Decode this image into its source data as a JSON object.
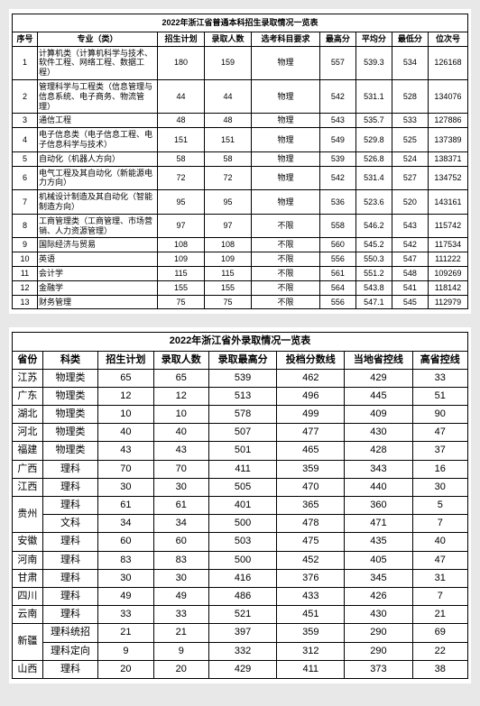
{
  "table1": {
    "title": "2022年浙江省普通本科招生录取情况一览表",
    "headers": [
      "序号",
      "专业（类）",
      "招生计划",
      "录取人数",
      "选考科目要求",
      "最高分",
      "平均分",
      "最低分",
      "位次号"
    ],
    "rows": [
      [
        "1",
        "计算机类（计算机科学与技术、软件工程、网络工程、数据工程）",
        "180",
        "159",
        "物理",
        "557",
        "539.3",
        "534",
        "126168"
      ],
      [
        "2",
        "管理科学与工程类（信息管理与信息系统、电子商务、物流管理）",
        "44",
        "44",
        "物理",
        "542",
        "531.1",
        "528",
        "134076"
      ],
      [
        "3",
        "通信工程",
        "48",
        "48",
        "物理",
        "543",
        "535.7",
        "533",
        "127886"
      ],
      [
        "4",
        "电子信息类（电子信息工程、电子信息科学与技术）",
        "151",
        "151",
        "物理",
        "549",
        "529.8",
        "525",
        "137389"
      ],
      [
        "5",
        "自动化（机器人方向）",
        "58",
        "58",
        "物理",
        "539",
        "526.8",
        "524",
        "138371"
      ],
      [
        "6",
        "电气工程及其自动化（新能源电力方向）",
        "72",
        "72",
        "物理",
        "542",
        "531.4",
        "527",
        "134752"
      ],
      [
        "7",
        "机械设计制造及其自动化（智能制造方向）",
        "95",
        "95",
        "物理",
        "536",
        "523.6",
        "520",
        "143161"
      ],
      [
        "8",
        "工商管理类（工商管理、市场营销、人力资源管理）",
        "97",
        "97",
        "不限",
        "558",
        "546.2",
        "543",
        "115742"
      ],
      [
        "9",
        "国际经济与贸易",
        "108",
        "108",
        "不限",
        "560",
        "545.2",
        "542",
        "117534"
      ],
      [
        "10",
        "英语",
        "109",
        "109",
        "不限",
        "556",
        "550.3",
        "547",
        "111222"
      ],
      [
        "11",
        "会计学",
        "115",
        "115",
        "不限",
        "561",
        "551.2",
        "548",
        "109269"
      ],
      [
        "12",
        "金融学",
        "155",
        "155",
        "不限",
        "564",
        "543.8",
        "541",
        "118142"
      ],
      [
        "13",
        "财务管理",
        "75",
        "75",
        "不限",
        "556",
        "547.1",
        "545",
        "112979"
      ]
    ]
  },
  "table2": {
    "title": "2022年浙江省外录取情况一览表",
    "headers": [
      "省份",
      "科类",
      "招生计划",
      "录取人数",
      "录取最高分",
      "投档分数线",
      "当地省控线",
      "高省控线"
    ],
    "rows": [
      [
        "江苏",
        "物理类",
        "65",
        "65",
        "539",
        "462",
        "429",
        "33"
      ],
      [
        "广东",
        "物理类",
        "12",
        "12",
        "513",
        "496",
        "445",
        "51"
      ],
      [
        "湖北",
        "物理类",
        "10",
        "10",
        "578",
        "499",
        "409",
        "90"
      ],
      [
        "河北",
        "物理类",
        "40",
        "40",
        "507",
        "477",
        "430",
        "47"
      ],
      [
        "福建",
        "物理类",
        "43",
        "43",
        "501",
        "465",
        "428",
        "37"
      ],
      [
        "广西",
        "理科",
        "70",
        "70",
        "411",
        "359",
        "343",
        "16"
      ],
      [
        "江西",
        "理科",
        "30",
        "30",
        "505",
        "470",
        "440",
        "30"
      ],
      [
        "",
        "理科",
        "61",
        "61",
        "401",
        "365",
        "360",
        "5"
      ],
      [
        "",
        "文科",
        "34",
        "34",
        "500",
        "478",
        "471",
        "7"
      ],
      [
        "安徽",
        "理科",
        "60",
        "60",
        "503",
        "475",
        "435",
        "40"
      ],
      [
        "河南",
        "理科",
        "83",
        "83",
        "500",
        "452",
        "405",
        "47"
      ],
      [
        "甘肃",
        "理科",
        "30",
        "30",
        "416",
        "376",
        "345",
        "31"
      ],
      [
        "四川",
        "理科",
        "49",
        "49",
        "486",
        "433",
        "426",
        "7"
      ],
      [
        "云南",
        "理科",
        "33",
        "33",
        "521",
        "451",
        "430",
        "21"
      ],
      [
        "",
        "理科统招",
        "21",
        "21",
        "397",
        "359",
        "290",
        "69"
      ],
      [
        "",
        "理科定向",
        "9",
        "9",
        "332",
        "312",
        "290",
        "22"
      ],
      [
        "山西",
        "理科",
        "20",
        "20",
        "429",
        "411",
        "373",
        "38"
      ]
    ]
  }
}
